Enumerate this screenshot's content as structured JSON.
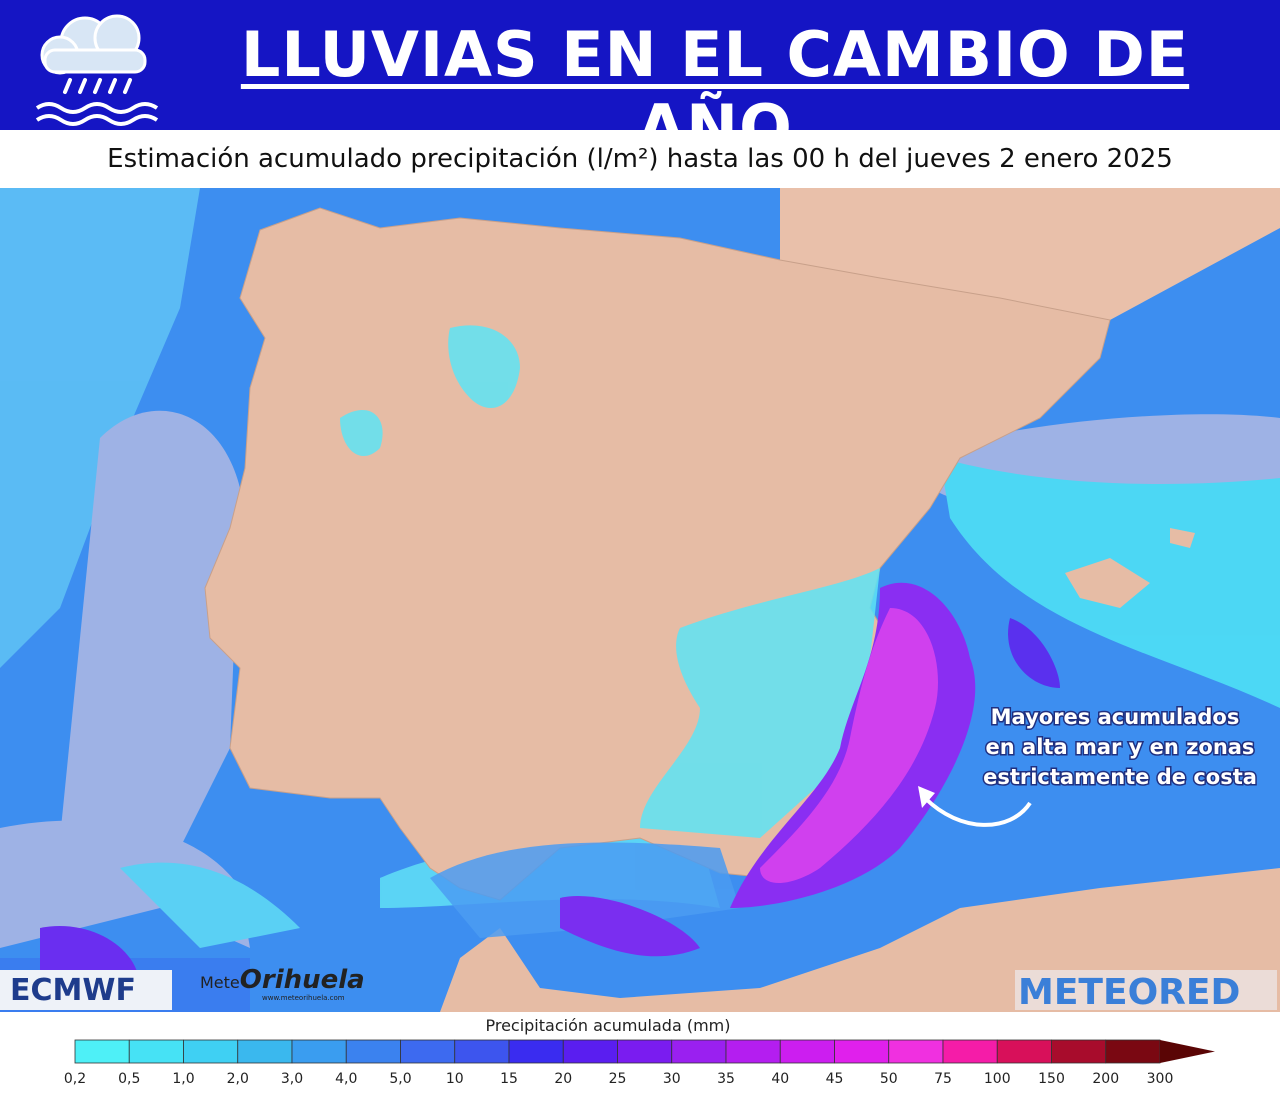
{
  "header": {
    "title": "LLUVIAS EN EL CAMBIO DE AÑO",
    "subtitle": "Estimación acumulado precipitación (l/m²) hasta las 00 h del jueves 2 enero 2025"
  },
  "map": {
    "annotation": [
      "Mayores acumulados",
      "en alta mar y en zonas",
      "estrictamente de costa"
    ],
    "logos": {
      "ecmwf": "ECMWF",
      "meteorihuela": [
        "Mete",
        "Orihuela"
      ],
      "meteorihuela_url": "www.meteorihuela.com",
      "meteored": "METEORED"
    }
  },
  "legend": {
    "title": "Precipitación acumulada (mm)",
    "labels": [
      "0,2",
      "0,5",
      "1,0",
      "2,0",
      "3,0",
      "4,0",
      "5,0",
      "10",
      "15",
      "20",
      "25",
      "30",
      "35",
      "40",
      "45",
      "50",
      "75",
      "100",
      "150",
      "200",
      "300"
    ],
    "colors": [
      "#4ef0f7",
      "#46e2f5",
      "#3fd0f3",
      "#3ab8ee",
      "#3a9df0",
      "#3b82ef",
      "#3d6af0",
      "#3d55ee",
      "#3a2cf0",
      "#5a1ef0",
      "#7a1cf0",
      "#9a20f0",
      "#b41ef0",
      "#cc1ef0",
      "#e020ec",
      "#f030e0",
      "#f51ca8",
      "#d8105a",
      "#a80c2c",
      "#7a0812"
    ],
    "over_color": "#5a0505"
  }
}
